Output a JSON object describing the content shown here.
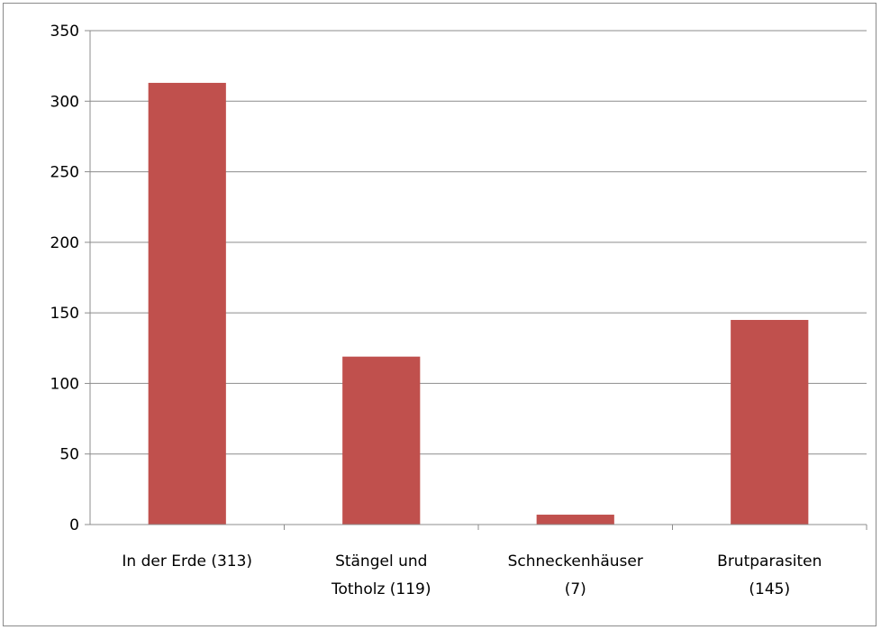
{
  "chart_data": {
    "type": "bar",
    "categories": [
      [
        "In der Erde (313)"
      ],
      [
        "Stängel und",
        "Totholz (119)"
      ],
      [
        "Schneckenhäuser",
        "(7)"
      ],
      [
        "Brutparasiten",
        "(145)"
      ]
    ],
    "values": [
      313,
      119,
      7,
      145
    ],
    "ylim": [
      0,
      350
    ],
    "yticks": [
      0,
      50,
      100,
      150,
      200,
      250,
      300,
      350
    ],
    "grid": true,
    "legend": "none",
    "bar_color": "#C0504D",
    "grid_color": "#8c8c8c",
    "title": "",
    "xlabel": "",
    "ylabel": ""
  }
}
